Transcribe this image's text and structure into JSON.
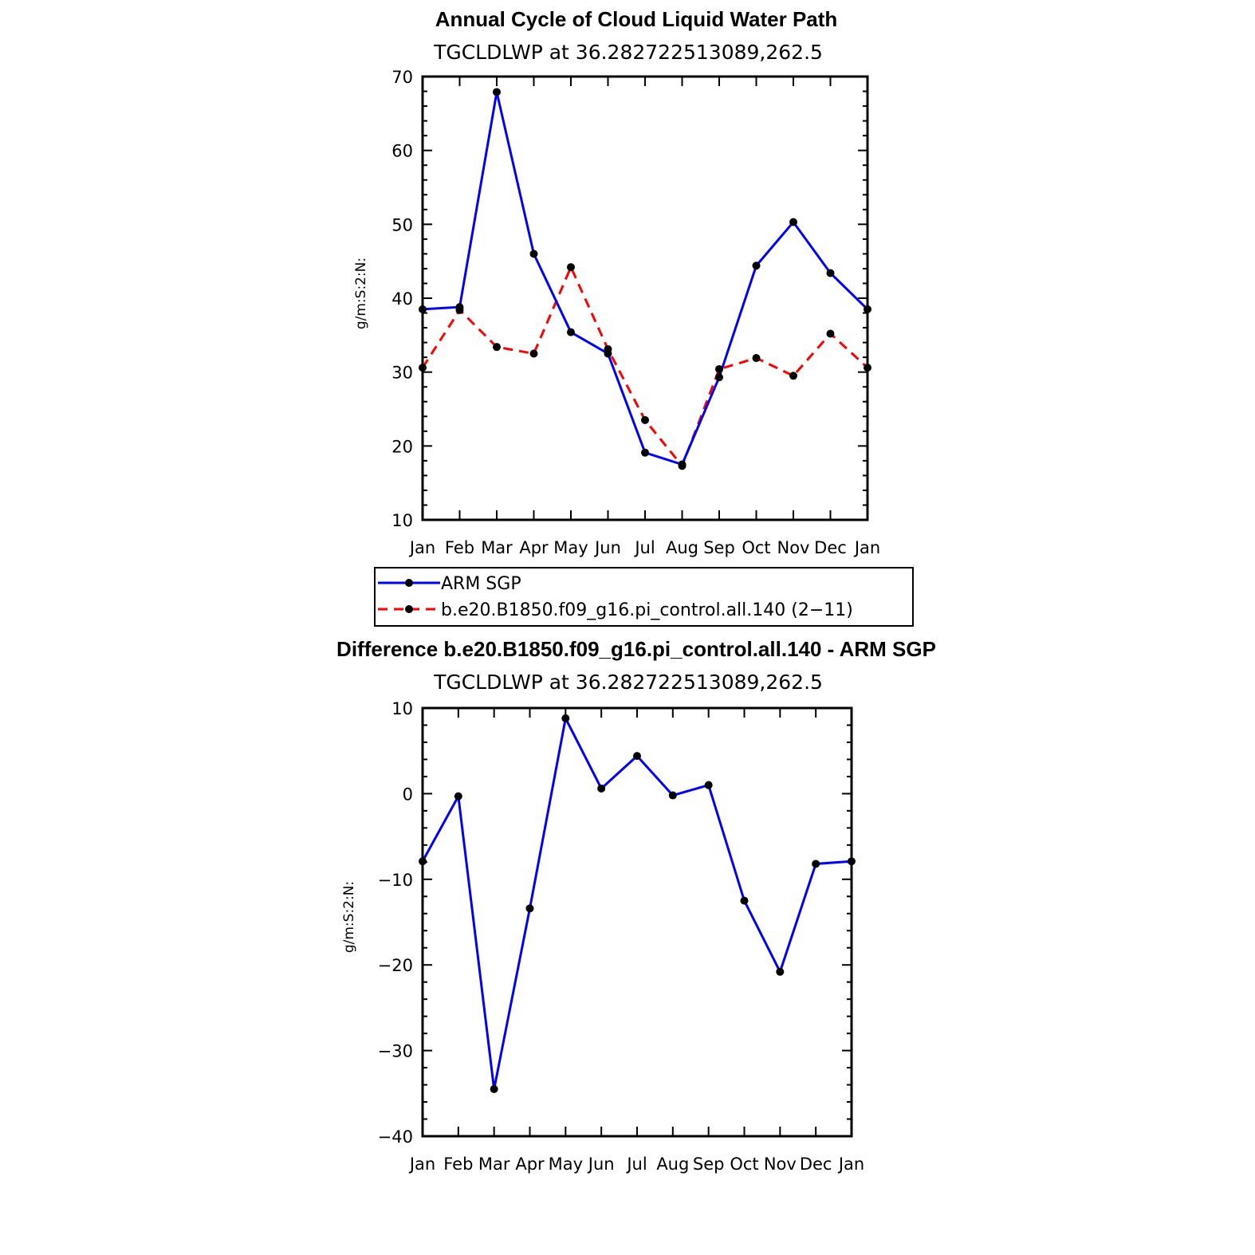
{
  "chart_data": [
    {
      "type": "line",
      "title": "Annual Cycle of Cloud Liquid Water Path",
      "subtitle": "TGCLDLWP at 36.282722513089,262.5",
      "ylabel": "g/m:S:2:N:",
      "xlabel": "",
      "categories": [
        "Jan",
        "Feb",
        "Mar",
        "Apr",
        "May",
        "Jun",
        "Jul",
        "Aug",
        "Sep",
        "Oct",
        "Nov",
        "Dec",
        "Jan"
      ],
      "ylim": [
        10,
        70
      ],
      "yticks": [
        10,
        20,
        30,
        40,
        50,
        60,
        70
      ],
      "series": [
        {
          "name": "ARM SGP",
          "color": "#0000ff",
          "style": "solid",
          "values": [
            38.5,
            38.8,
            67.9,
            46.0,
            35.4,
            32.5,
            19.1,
            17.5,
            29.3,
            44.4,
            50.3,
            43.4,
            38.5
          ]
        },
        {
          "name": "b.e20.B1850.f09_g16.pi_control.all.140 (2−11)",
          "color": "#ff0000",
          "style": "dashed",
          "values": [
            30.6,
            38.4,
            33.4,
            32.5,
            44.2,
            33.1,
            23.5,
            17.3,
            30.4,
            31.9,
            29.5,
            35.2,
            30.6
          ]
        }
      ],
      "legend": "below"
    },
    {
      "type": "line",
      "title": "Difference b.e20.B1850.f09_g16.pi_control.all.140 - ARM SGP",
      "subtitle": "TGCLDLWP at 36.282722513089,262.5",
      "ylabel": "g/m:S:2:N:",
      "xlabel": "",
      "categories": [
        "Jan",
        "Feb",
        "Mar",
        "Apr",
        "May",
        "Jun",
        "Jul",
        "Aug",
        "Sep",
        "Oct",
        "Nov",
        "Dec",
        "Jan"
      ],
      "ylim": [
        -40,
        10
      ],
      "yticks": [
        -40,
        -30,
        -20,
        -10,
        0,
        10
      ],
      "ytick_labels": [
        "−40",
        "−30",
        "−20",
        "−10",
        "0",
        "10"
      ],
      "series": [
        {
          "name": "Difference",
          "color": "#0000ff",
          "style": "solid",
          "values": [
            -7.9,
            -0.3,
            -34.5,
            -13.4,
            8.8,
            0.6,
            4.4,
            -0.2,
            1.0,
            -12.5,
            -20.8,
            -8.2,
            -7.9
          ]
        }
      ]
    }
  ]
}
